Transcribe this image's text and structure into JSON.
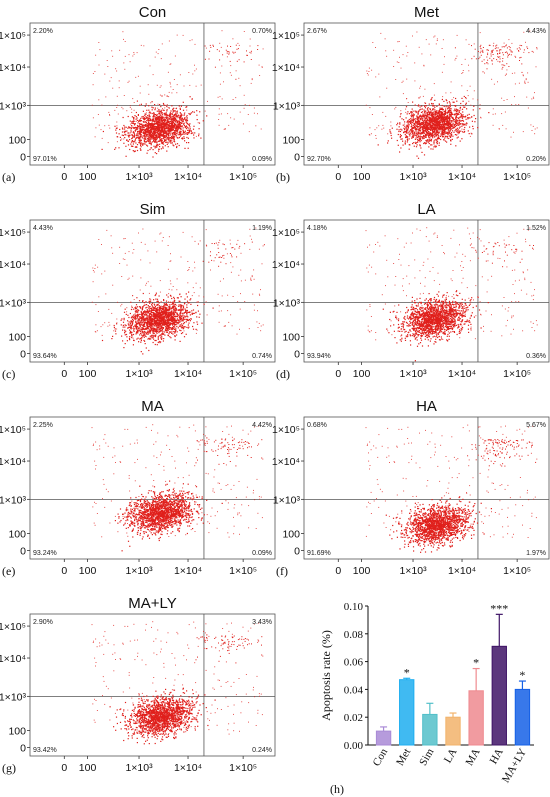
{
  "chart_data": [
    {
      "type": "scatter",
      "panel_label": "(a)",
      "title": "Con",
      "quadrants": {
        "upper_left": "2.20%",
        "upper_right": "0.70%",
        "lower_left": "97.01%",
        "lower_right": "0.09%"
      },
      "y_ticks": [
        "1×10⁵",
        "1×10⁴",
        "1×10³",
        "100",
        "0"
      ],
      "x_ticks": [
        "0",
        "100",
        "1×10³",
        "1×10⁴",
        "1×10⁵"
      ],
      "point_color": "#e0201c",
      "cluster": {
        "center_x": 2500,
        "center_y": 230,
        "upper_right_density": 1
      }
    },
    {
      "type": "scatter",
      "panel_label": "(b)",
      "title": "Met",
      "quadrants": {
        "upper_left": "2.67%",
        "upper_right": "4.43%",
        "lower_left": "92.70%",
        "lower_right": "0.20%"
      },
      "y_ticks": [
        "1×10⁵",
        "1×10⁴",
        "1×10³",
        "100",
        "0"
      ],
      "x_ticks": [
        "0",
        "100",
        "1×10³",
        "1×10⁴",
        "1×10⁵"
      ],
      "point_color": "#e0201c",
      "cluster": {
        "center_x": 2600,
        "center_y": 300,
        "upper_right_density": 3
      }
    },
    {
      "type": "scatter",
      "panel_label": "(c)",
      "title": "Sim",
      "quadrants": {
        "upper_left": "4.43%",
        "upper_right": "1.19%",
        "lower_left": "93.64%",
        "lower_right": "0.74%"
      },
      "y_ticks": [
        "1×10⁵",
        "1×10⁴",
        "1×10³",
        "100",
        "0"
      ],
      "x_ticks": [
        "0",
        "100",
        "1×10³",
        "1×10⁴",
        "1×10⁵"
      ],
      "point_color": "#e0201c",
      "cluster": {
        "center_x": 2400,
        "center_y": 330,
        "upper_right_density": 1
      }
    },
    {
      "type": "scatter",
      "panel_label": "(d)",
      "title": "LA",
      "quadrants": {
        "upper_left": "4.18%",
        "upper_right": "1.52%",
        "lower_left": "93.94%",
        "lower_right": "0.36%"
      },
      "y_ticks": [
        "1×10⁵",
        "1×10⁴",
        "1×10³",
        "100",
        "0"
      ],
      "x_ticks": [
        "0",
        "100",
        "1×10³",
        "1×10⁴",
        "1×10⁵"
      ],
      "point_color": "#e0201c",
      "cluster": {
        "center_x": 2600,
        "center_y": 330,
        "upper_right_density": 1
      }
    },
    {
      "type": "scatter",
      "panel_label": "(e)",
      "title": "MA",
      "quadrants": {
        "upper_left": "2.25%",
        "upper_right": "4.42%",
        "lower_left": "93.24%",
        "lower_right": "0.09%"
      },
      "y_ticks": [
        "1×10⁵",
        "1×10⁴",
        "1×10³",
        "100",
        "0"
      ],
      "x_ticks": [
        "0",
        "100",
        "1×10³",
        "1×10⁴",
        "1×10⁵"
      ],
      "point_color": "#e0201c",
      "cluster": {
        "center_x": 2800,
        "center_y": 420,
        "upper_right_density": 2
      }
    },
    {
      "type": "scatter",
      "panel_label": "(f)",
      "title": "HA",
      "quadrants": {
        "upper_left": "0.68%",
        "upper_right": "5.67%",
        "lower_left": "91.69%",
        "lower_right": "1.97%"
      },
      "y_ticks": [
        "1×10⁵",
        "1×10⁴",
        "1×10³",
        "100",
        "0"
      ],
      "x_ticks": [
        "0",
        "100",
        "1×10³",
        "1×10⁴",
        "1×10⁵"
      ],
      "point_color": "#e0201c",
      "cluster": {
        "center_x": 3000,
        "center_y": 180,
        "upper_right_density": 3
      }
    },
    {
      "type": "scatter",
      "panel_label": "(g)",
      "title": "MA+LY",
      "quadrants": {
        "upper_left": "2.90%",
        "upper_right": "3.43%",
        "lower_left": "93.42%",
        "lower_right": "0.24%"
      },
      "y_ticks": [
        "1×10⁵",
        "1×10⁴",
        "1×10³",
        "100",
        "0"
      ],
      "x_ticks": [
        "0",
        "100",
        "1×10³",
        "1×10⁴",
        "1×10⁵"
      ],
      "point_color": "#e0201c",
      "cluster": {
        "center_x": 2700,
        "center_y": 260,
        "upper_right_density": 2
      }
    },
    {
      "type": "bar",
      "panel_label": "(h)",
      "ylabel": "Apoptosis rate (%)",
      "ylim": [
        0,
        0.1
      ],
      "y_ticks": [
        "0.00",
        "0.02",
        "0.04",
        "0.06",
        "0.08",
        "0.10"
      ],
      "categories": [
        "Con",
        "Met",
        "Sim",
        "LA",
        "MA",
        "HA",
        "MA+LY"
      ],
      "values": [
        0.01,
        0.047,
        0.022,
        0.02,
        0.039,
        0.071,
        0.04
      ],
      "errors": [
        0.003,
        0.001,
        0.008,
        0.003,
        0.016,
        0.023,
        0.006
      ],
      "significance": [
        "",
        "*",
        "",
        "",
        "*",
        "***",
        "*"
      ],
      "bar_colors": [
        "#a98ad6",
        "#1eaef0",
        "#52bfc9",
        "#f2b36b",
        "#ef8a8f",
        "#3f1466",
        "#1560e6"
      ]
    }
  ]
}
